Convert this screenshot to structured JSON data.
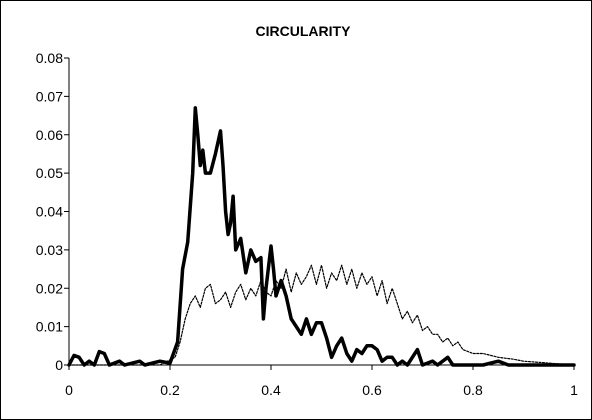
{
  "chart_data": {
    "type": "line",
    "title": "CIRCULARITY",
    "xlabel": "",
    "ylabel": "",
    "xlim": [
      0,
      1
    ],
    "ylim": [
      0,
      0.08
    ],
    "x_ticks": [
      0,
      0.2,
      0.4,
      0.6,
      0.8,
      1
    ],
    "x_tick_labels": [
      "0",
      "0.2",
      "0.4",
      "0.6",
      "0.8",
      "1"
    ],
    "y_ticks": [
      0,
      0.01,
      0.02,
      0.03,
      0.04,
      0.05,
      0.06,
      0.07,
      0.08
    ],
    "y_tick_labels": [
      "0",
      "0.01",
      "0.02",
      "0.03",
      "0.04",
      "0.05",
      "0.06",
      "0.07",
      "0.08"
    ],
    "grid": false,
    "legend": "none",
    "series": [
      {
        "style": "solid-thick",
        "color": "#000000",
        "points": [
          [
            0,
            0
          ],
          [
            0.01,
            0.0025
          ],
          [
            0.02,
            0.002
          ],
          [
            0.03,
            0
          ],
          [
            0.04,
            0.001
          ],
          [
            0.05,
            0
          ],
          [
            0.06,
            0.0035
          ],
          [
            0.07,
            0.003
          ],
          [
            0.08,
            0
          ],
          [
            0.1,
            0.001
          ],
          [
            0.11,
            0
          ],
          [
            0.14,
            0.001
          ],
          [
            0.15,
            0
          ],
          [
            0.18,
            0.001
          ],
          [
            0.2,
            0.0005
          ],
          [
            0.215,
            0.006
          ],
          [
            0.225,
            0.025
          ],
          [
            0.235,
            0.032
          ],
          [
            0.245,
            0.05
          ],
          [
            0.25,
            0.067
          ],
          [
            0.255,
            0.06
          ],
          [
            0.26,
            0.052
          ],
          [
            0.265,
            0.056
          ],
          [
            0.27,
            0.05
          ],
          [
            0.28,
            0.05
          ],
          [
            0.29,
            0.055
          ],
          [
            0.3,
            0.061
          ],
          [
            0.305,
            0.052
          ],
          [
            0.31,
            0.04
          ],
          [
            0.315,
            0.034
          ],
          [
            0.32,
            0.037
          ],
          [
            0.325,
            0.044
          ],
          [
            0.33,
            0.03
          ],
          [
            0.34,
            0.033
          ],
          [
            0.35,
            0.024
          ],
          [
            0.36,
            0.03
          ],
          [
            0.37,
            0.027
          ],
          [
            0.38,
            0.028
          ],
          [
            0.385,
            0.012
          ],
          [
            0.39,
            0.02
          ],
          [
            0.4,
            0.031
          ],
          [
            0.405,
            0.025
          ],
          [
            0.41,
            0.018
          ],
          [
            0.42,
            0.022
          ],
          [
            0.43,
            0.018
          ],
          [
            0.44,
            0.012
          ],
          [
            0.45,
            0.01
          ],
          [
            0.46,
            0.008
          ],
          [
            0.47,
            0.012
          ],
          [
            0.48,
            0.008
          ],
          [
            0.49,
            0.011
          ],
          [
            0.5,
            0.011
          ],
          [
            0.51,
            0.007
          ],
          [
            0.52,
            0.002
          ],
          [
            0.53,
            0.005
          ],
          [
            0.54,
            0.007
          ],
          [
            0.55,
            0.003
          ],
          [
            0.56,
            0.001
          ],
          [
            0.57,
            0.004
          ],
          [
            0.58,
            0.003
          ],
          [
            0.59,
            0.005
          ],
          [
            0.6,
            0.005
          ],
          [
            0.61,
            0.004
          ],
          [
            0.62,
            0.001
          ],
          [
            0.63,
            0.002
          ],
          [
            0.64,
            0.002
          ],
          [
            0.65,
            0
          ],
          [
            0.66,
            0.001
          ],
          [
            0.67,
            0
          ],
          [
            0.69,
            0.004
          ],
          [
            0.7,
            0
          ],
          [
            0.72,
            0.001
          ],
          [
            0.73,
            0
          ],
          [
            0.75,
            0.002
          ],
          [
            0.76,
            0
          ],
          [
            0.78,
            0
          ],
          [
            0.8,
            0
          ],
          [
            0.82,
            0
          ],
          [
            0.85,
            0.001
          ],
          [
            0.87,
            0
          ],
          [
            1,
            0
          ]
        ]
      },
      {
        "style": "dotted-thin",
        "color": "#000000",
        "points": [
          [
            0,
            0
          ],
          [
            0.18,
            0
          ],
          [
            0.21,
            0.002
          ],
          [
            0.22,
            0.006
          ],
          [
            0.23,
            0.012
          ],
          [
            0.24,
            0.016
          ],
          [
            0.25,
            0.018
          ],
          [
            0.26,
            0.015
          ],
          [
            0.27,
            0.02
          ],
          [
            0.28,
            0.021
          ],
          [
            0.29,
            0.016
          ],
          [
            0.3,
            0.017
          ],
          [
            0.31,
            0.019
          ],
          [
            0.32,
            0.015
          ],
          [
            0.33,
            0.019
          ],
          [
            0.34,
            0.021
          ],
          [
            0.35,
            0.017
          ],
          [
            0.36,
            0.02
          ],
          [
            0.37,
            0.018
          ],
          [
            0.38,
            0.022
          ],
          [
            0.39,
            0.019
          ],
          [
            0.4,
            0.018
          ],
          [
            0.41,
            0.022
          ],
          [
            0.42,
            0.02
          ],
          [
            0.43,
            0.025
          ],
          [
            0.44,
            0.019
          ],
          [
            0.45,
            0.024
          ],
          [
            0.46,
            0.021
          ],
          [
            0.47,
            0.023
          ],
          [
            0.48,
            0.026
          ],
          [
            0.49,
            0.021
          ],
          [
            0.5,
            0.026
          ],
          [
            0.51,
            0.02
          ],
          [
            0.52,
            0.024
          ],
          [
            0.53,
            0.022
          ],
          [
            0.54,
            0.026
          ],
          [
            0.55,
            0.021
          ],
          [
            0.56,
            0.025
          ],
          [
            0.57,
            0.02
          ],
          [
            0.58,
            0.024
          ],
          [
            0.59,
            0.021
          ],
          [
            0.6,
            0.023
          ],
          [
            0.61,
            0.018
          ],
          [
            0.62,
            0.022
          ],
          [
            0.63,
            0.016
          ],
          [
            0.64,
            0.02
          ],
          [
            0.65,
            0.016
          ],
          [
            0.66,
            0.012
          ],
          [
            0.67,
            0.014
          ],
          [
            0.68,
            0.011
          ],
          [
            0.69,
            0.013
          ],
          [
            0.7,
            0.009
          ],
          [
            0.71,
            0.01
          ],
          [
            0.72,
            0.008
          ],
          [
            0.73,
            0.008
          ],
          [
            0.74,
            0.006
          ],
          [
            0.75,
            0.007
          ],
          [
            0.76,
            0.005
          ],
          [
            0.77,
            0.006
          ],
          [
            0.78,
            0.004
          ],
          [
            0.8,
            0.003
          ],
          [
            0.82,
            0.003
          ],
          [
            0.85,
            0.002
          ],
          [
            0.88,
            0.0015
          ],
          [
            0.9,
            0.001
          ],
          [
            0.95,
            0.0005
          ],
          [
            1,
            0
          ]
        ]
      }
    ]
  }
}
